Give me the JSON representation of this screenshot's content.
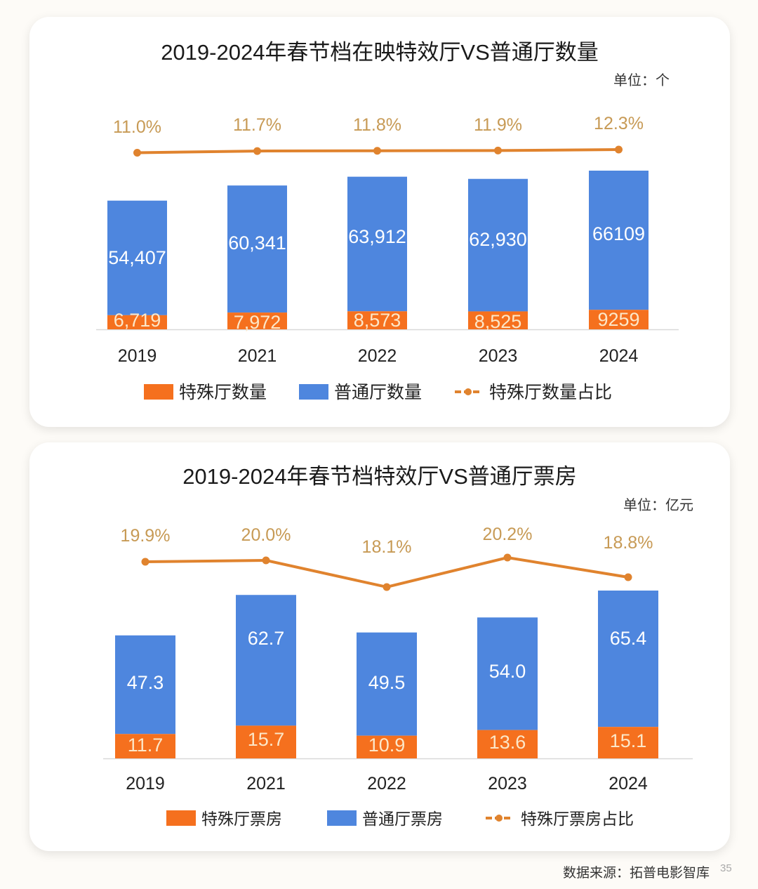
{
  "colors": {
    "special": "#f5701e",
    "normal": "#4e86de",
    "line": "#e0832e",
    "pct_text": "#c79a55"
  },
  "chart_data": [
    {
      "type": "bar",
      "stacked": true,
      "title": "2019-2024年春节档在映特效厅VS普通厅数量",
      "unit": "单位：个",
      "categories": [
        "2019",
        "2021",
        "2022",
        "2023",
        "2024"
      ],
      "series": [
        {
          "name": "特殊厅数量",
          "type": "bar",
          "values": [
            6719,
            7972,
            8573,
            8525,
            9259
          ],
          "labels": [
            "6,719",
            "7,972",
            "8,573",
            "8,525",
            "9259"
          ]
        },
        {
          "name": "普通厅数量",
          "type": "bar",
          "values": [
            54407,
            60341,
            63912,
            62930,
            66109
          ],
          "labels": [
            "54,407",
            "60,341",
            "63,912",
            "62,930",
            "66109"
          ]
        },
        {
          "name": "特殊厅数量占比",
          "type": "line",
          "values": [
            11.0,
            11.7,
            11.8,
            11.9,
            12.3
          ],
          "labels": [
            "11.0%",
            "11.7%",
            "11.8%",
            "11.9%",
            "12.3%"
          ]
        }
      ],
      "legend_position": "bottom",
      "grid": false
    },
    {
      "type": "bar",
      "stacked": true,
      "title": "2019-2024年春节档特效厅VS普通厅票房",
      "unit": "单位：亿元",
      "categories": [
        "2019",
        "2021",
        "2022",
        "2023",
        "2024"
      ],
      "series": [
        {
          "name": "特殊厅票房",
          "type": "bar",
          "values": [
            11.7,
            15.7,
            10.9,
            13.6,
            15.1
          ],
          "labels": [
            "11.7",
            "15.7",
            "10.9",
            "13.6",
            "15.1"
          ]
        },
        {
          "name": "普通厅票房",
          "type": "bar",
          "values": [
            47.3,
            62.7,
            49.5,
            54.0,
            65.4
          ],
          "labels": [
            "47.3",
            "62.7",
            "49.5",
            "54.0",
            "65.4"
          ]
        },
        {
          "name": "特殊厅票房占比",
          "type": "line",
          "values": [
            19.9,
            20.0,
            18.1,
            20.2,
            18.8
          ],
          "labels": [
            "19.9%",
            "20.0%",
            "18.1%",
            "20.2%",
            "18.8%"
          ]
        }
      ],
      "legend_position": "bottom",
      "grid": false
    }
  ],
  "footer": {
    "source": "数据来源：拓普电影智库",
    "page": "35"
  }
}
